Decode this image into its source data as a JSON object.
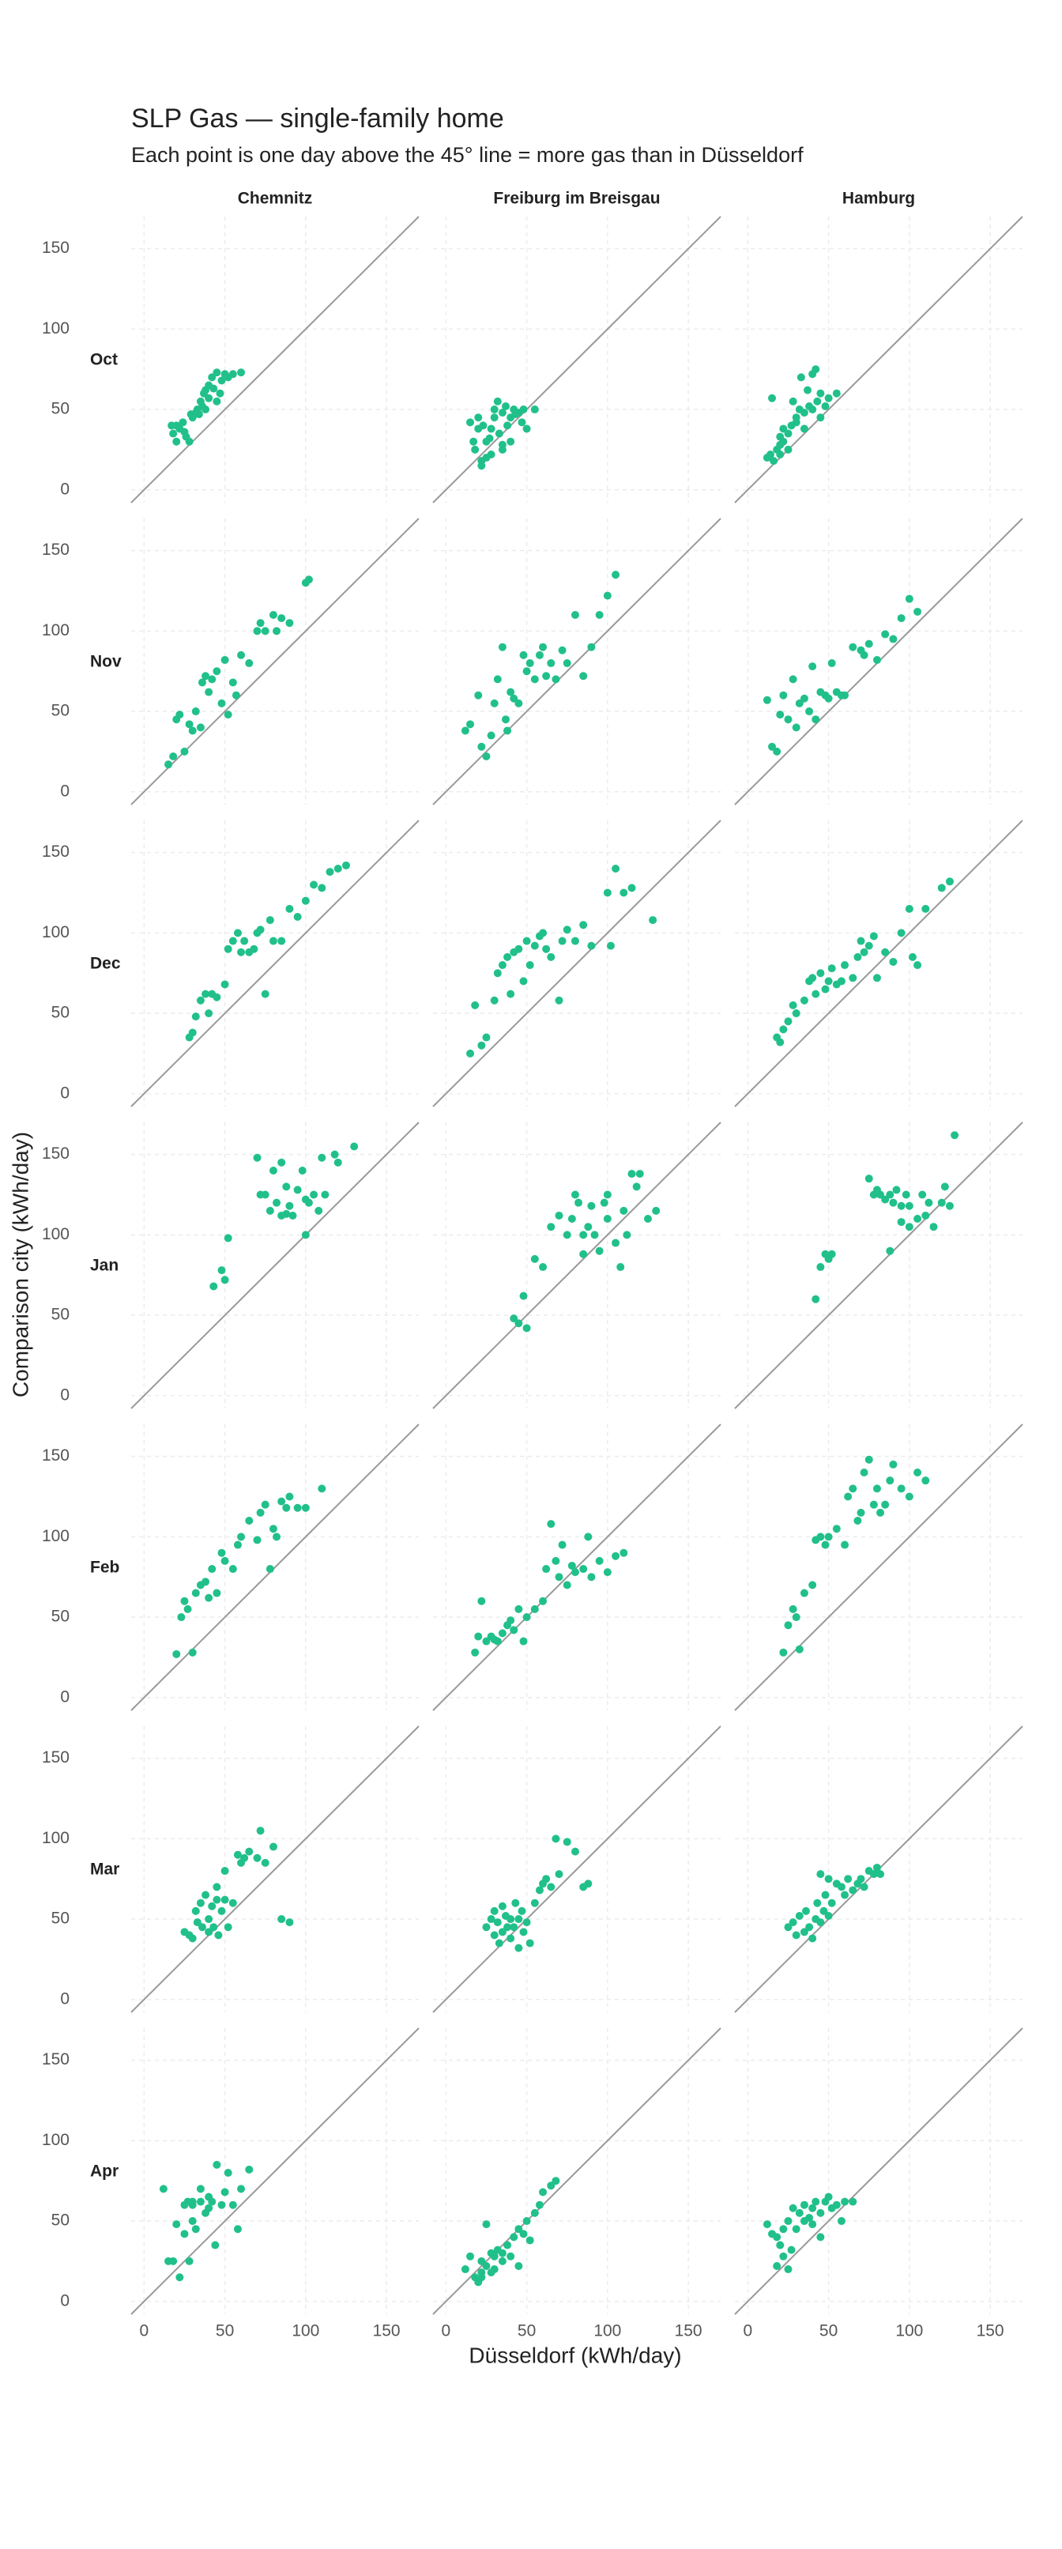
{
  "chart_data": {
    "type": "scatter",
    "title": "SLP Gas — single-family home",
    "subtitle": "Each point is one day above the 45° line = more gas than in Düsseldorf",
    "x_label": "Düsseldorf (kWh/day)",
    "y_label": "Comparison city (kWh/day)",
    "columns": [
      "Chemnitz",
      "Freiburg im Breisgau",
      "Hamburg"
    ],
    "rows": [
      "Oct",
      "Nov",
      "Dec",
      "Jan",
      "Feb",
      "Mar",
      "Apr"
    ],
    "xlim": [
      -8,
      170
    ],
    "ylim": [
      -8,
      170
    ],
    "xticks": [
      0,
      50,
      100,
      150
    ],
    "yticks": [
      0,
      50,
      100,
      150
    ],
    "grid": true,
    "color": "#21c08b",
    "panels": [
      {
        "x": [
          17,
          18,
          20,
          22,
          24,
          26,
          28,
          30,
          32,
          33,
          34,
          35,
          36,
          37,
          38,
          40,
          40,
          42,
          43,
          45,
          45,
          47,
          48,
          50,
          52,
          55,
          60,
          20,
          25,
          29,
          38
        ],
        "y": [
          40,
          35,
          30,
          38,
          42,
          33,
          30,
          45,
          48,
          50,
          47,
          55,
          52,
          60,
          50,
          57,
          65,
          70,
          63,
          73,
          55,
          60,
          68,
          72,
          70,
          72,
          73,
          40,
          36,
          47,
          62
        ]
      },
      {
        "x": [
          15,
          17,
          18,
          20,
          20,
          22,
          23,
          25,
          25,
          27,
          28,
          30,
          30,
          32,
          33,
          35,
          35,
          37,
          38,
          40,
          40,
          42,
          43,
          45,
          47,
          48,
          50,
          55,
          28,
          22,
          35
        ],
        "y": [
          42,
          30,
          25,
          45,
          38,
          15,
          40,
          20,
          30,
          32,
          38,
          45,
          50,
          55,
          35,
          48,
          28,
          52,
          40,
          45,
          30,
          50,
          47,
          48,
          42,
          50,
          38,
          50,
          22,
          18,
          25
        ]
      },
      {
        "x": [
          12,
          14,
          15,
          16,
          18,
          20,
          20,
          22,
          22,
          25,
          25,
          27,
          28,
          30,
          30,
          32,
          33,
          35,
          35,
          37,
          38,
          40,
          40,
          42,
          43,
          45,
          45,
          48,
          50,
          55,
          20
        ],
        "y": [
          20,
          22,
          57,
          18,
          25,
          33,
          28,
          30,
          38,
          35,
          25,
          40,
          55,
          42,
          45,
          50,
          70,
          48,
          38,
          62,
          52,
          72,
          50,
          75,
          55,
          45,
          60,
          52,
          57,
          60,
          22
        ]
      },
      {
        "x": [
          15,
          18,
          20,
          22,
          25,
          28,
          30,
          32,
          35,
          36,
          38,
          40,
          42,
          45,
          48,
          50,
          52,
          55,
          57,
          60,
          65,
          70,
          72,
          75,
          80,
          82,
          85,
          90,
          100,
          102
        ],
        "y": [
          17,
          22,
          45,
          48,
          25,
          42,
          38,
          50,
          40,
          68,
          72,
          62,
          70,
          75,
          55,
          82,
          48,
          68,
          60,
          85,
          80,
          100,
          105,
          100,
          110,
          100,
          108,
          105,
          130,
          132
        ]
      },
      {
        "x": [
          12,
          15,
          20,
          22,
          25,
          28,
          30,
          32,
          35,
          37,
          38,
          40,
          42,
          45,
          48,
          50,
          52,
          55,
          58,
          60,
          62,
          65,
          68,
          72,
          75,
          80,
          85,
          90,
          95,
          100,
          105
        ],
        "y": [
          38,
          42,
          60,
          28,
          22,
          35,
          55,
          70,
          90,
          45,
          38,
          62,
          58,
          55,
          85,
          75,
          80,
          70,
          85,
          90,
          72,
          80,
          70,
          88,
          80,
          110,
          72,
          90,
          110,
          122,
          135
        ]
      },
      {
        "x": [
          12,
          15,
          18,
          20,
          22,
          25,
          28,
          30,
          32,
          35,
          38,
          40,
          42,
          45,
          48,
          50,
          52,
          55,
          58,
          60,
          65,
          70,
          72,
          75,
          80,
          85,
          90,
          95,
          100,
          105
        ],
        "y": [
          57,
          28,
          25,
          48,
          60,
          45,
          70,
          40,
          55,
          58,
          50,
          78,
          45,
          62,
          60,
          58,
          80,
          62,
          60,
          60,
          90,
          88,
          85,
          92,
          82,
          98,
          95,
          108,
          120,
          112
        ]
      },
      {
        "x": [
          28,
          30,
          32,
          35,
          38,
          40,
          42,
          45,
          50,
          52,
          55,
          58,
          60,
          62,
          65,
          68,
          70,
          72,
          75,
          78,
          80,
          85,
          90,
          95,
          100,
          105,
          110,
          115,
          120,
          125
        ],
        "y": [
          35,
          38,
          48,
          58,
          62,
          50,
          62,
          60,
          68,
          90,
          95,
          100,
          88,
          95,
          88,
          90,
          100,
          102,
          62,
          108,
          95,
          95,
          115,
          110,
          120,
          130,
          128,
          138,
          140,
          142
        ]
      },
      {
        "x": [
          15,
          18,
          22,
          25,
          30,
          32,
          35,
          38,
          40,
          42,
          45,
          48,
          50,
          52,
          55,
          58,
          60,
          62,
          65,
          70,
          72,
          75,
          80,
          85,
          90,
          100,
          102,
          105,
          110,
          115,
          128
        ],
        "y": [
          25,
          55,
          30,
          35,
          58,
          75,
          80,
          85,
          62,
          88,
          90,
          70,
          95,
          80,
          92,
          98,
          100,
          90,
          85,
          58,
          95,
          102,
          95,
          105,
          92,
          125,
          92,
          140,
          125,
          128,
          108
        ]
      },
      {
        "x": [
          18,
          20,
          22,
          25,
          28,
          30,
          35,
          38,
          40,
          42,
          45,
          48,
          50,
          52,
          55,
          58,
          60,
          65,
          68,
          70,
          72,
          75,
          78,
          80,
          85,
          90,
          95,
          100,
          102,
          105,
          110,
          120,
          125
        ],
        "y": [
          35,
          32,
          40,
          45,
          55,
          50,
          58,
          70,
          72,
          62,
          75,
          65,
          70,
          78,
          68,
          70,
          80,
          72,
          85,
          95,
          88,
          92,
          98,
          72,
          88,
          82,
          100,
          115,
          85,
          80,
          115,
          128,
          132
        ]
      },
      {
        "x": [
          43,
          48,
          50,
          52,
          70,
          75,
          78,
          80,
          82,
          85,
          85,
          88,
          90,
          92,
          95,
          98,
          100,
          100,
          102,
          105,
          108,
          110,
          112,
          118,
          120,
          130,
          72,
          88
        ],
        "y": [
          68,
          78,
          72,
          98,
          148,
          125,
          115,
          140,
          120,
          145,
          112,
          130,
          118,
          112,
          128,
          140,
          100,
          122,
          120,
          125,
          115,
          148,
          125,
          150,
          145,
          155,
          125,
          113
        ]
      },
      {
        "x": [
          42,
          45,
          48,
          50,
          55,
          60,
          65,
          70,
          75,
          78,
          80,
          82,
          85,
          85,
          88,
          90,
          92,
          95,
          98,
          100,
          100,
          105,
          108,
          110,
          112,
          115,
          118,
          120,
          125,
          130
        ],
        "y": [
          48,
          45,
          62,
          42,
          85,
          80,
          105,
          112,
          100,
          110,
          125,
          120,
          88,
          100,
          105,
          118,
          100,
          90,
          120,
          110,
          125,
          95,
          80,
          115,
          100,
          138,
          130,
          138,
          110,
          115
        ]
      },
      {
        "x": [
          42,
          45,
          48,
          50,
          52,
          75,
          78,
          80,
          82,
          85,
          88,
          90,
          92,
          95,
          95,
          98,
          100,
          100,
          105,
          108,
          110,
          112,
          115,
          120,
          122,
          125,
          128,
          88
        ],
        "y": [
          60,
          80,
          88,
          85,
          88,
          135,
          125,
          128,
          125,
          122,
          125,
          120,
          128,
          118,
          108,
          125,
          118,
          105,
          110,
          125,
          112,
          120,
          105,
          120,
          130,
          118,
          162,
          90
        ]
      },
      {
        "x": [
          20,
          23,
          25,
          27,
          30,
          32,
          35,
          38,
          40,
          42,
          45,
          48,
          50,
          55,
          58,
          60,
          65,
          70,
          72,
          75,
          78,
          80,
          82,
          85,
          88,
          90,
          95,
          100,
          110
        ],
        "y": [
          27,
          50,
          60,
          55,
          28,
          65,
          70,
          72,
          62,
          80,
          65,
          90,
          85,
          80,
          95,
          100,
          110,
          98,
          115,
          120,
          80,
          105,
          100,
          122,
          118,
          125,
          118,
          118,
          130
        ]
      },
      {
        "x": [
          18,
          20,
          22,
          25,
          28,
          30,
          32,
          35,
          38,
          40,
          42,
          45,
          48,
          50,
          55,
          60,
          62,
          65,
          68,
          70,
          72,
          75,
          78,
          80,
          85,
          88,
          90,
          95,
          100,
          105,
          110
        ],
        "y": [
          28,
          38,
          60,
          35,
          38,
          36,
          35,
          40,
          45,
          48,
          42,
          55,
          35,
          50,
          55,
          60,
          80,
          108,
          85,
          75,
          95,
          70,
          82,
          78,
          80,
          100,
          75,
          85,
          78,
          88,
          90
        ]
      },
      {
        "x": [
          22,
          25,
          28,
          30,
          32,
          35,
          40,
          42,
          45,
          48,
          50,
          55,
          60,
          62,
          65,
          68,
          70,
          72,
          75,
          78,
          80,
          82,
          85,
          88,
          90,
          95,
          100,
          105,
          110
        ],
        "y": [
          28,
          45,
          55,
          50,
          30,
          65,
          70,
          98,
          100,
          95,
          100,
          105,
          95,
          125,
          130,
          110,
          115,
          140,
          148,
          120,
          130,
          115,
          120,
          135,
          145,
          130,
          125,
          140,
          135
        ]
      },
      {
        "x": [
          25,
          28,
          30,
          32,
          33,
          35,
          36,
          38,
          40,
          40,
          42,
          43,
          45,
          45,
          46,
          48,
          50,
          50,
          52,
          55,
          58,
          60,
          62,
          65,
          70,
          72,
          75,
          80,
          85,
          90
        ],
        "y": [
          42,
          40,
          38,
          55,
          48,
          60,
          45,
          65,
          42,
          50,
          58,
          45,
          70,
          62,
          40,
          55,
          62,
          80,
          45,
          60,
          90,
          85,
          88,
          92,
          88,
          105,
          85,
          95,
          50,
          48
        ]
      },
      {
        "x": [
          25,
          28,
          30,
          30,
          32,
          33,
          35,
          35,
          37,
          38,
          40,
          40,
          42,
          43,
          45,
          45,
          47,
          48,
          50,
          52,
          55,
          58,
          60,
          62,
          65,
          68,
          70,
          75,
          80,
          85,
          88
        ],
        "y": [
          45,
          50,
          40,
          55,
          48,
          35,
          58,
          42,
          52,
          45,
          50,
          38,
          45,
          60,
          32,
          50,
          55,
          42,
          48,
          35,
          60,
          68,
          72,
          75,
          70,
          100,
          78,
          98,
          92,
          70,
          72
        ]
      },
      {
        "x": [
          25,
          28,
          30,
          32,
          35,
          36,
          38,
          40,
          42,
          43,
          45,
          45,
          47,
          48,
          50,
          50,
          52,
          55,
          58,
          60,
          62,
          65,
          68,
          70,
          72,
          75,
          78,
          80,
          82
        ],
        "y": [
          45,
          48,
          40,
          52,
          42,
          55,
          45,
          38,
          50,
          60,
          48,
          78,
          55,
          65,
          52,
          75,
          60,
          72,
          70,
          65,
          75,
          68,
          72,
          75,
          70,
          80,
          78,
          82,
          78
        ]
      },
      {
        "x": [
          12,
          15,
          18,
          20,
          22,
          25,
          25,
          27,
          28,
          30,
          30,
          32,
          35,
          35,
          38,
          40,
          40,
          42,
          44,
          45,
          48,
          50,
          52,
          55,
          58,
          60,
          65,
          30
        ],
        "y": [
          70,
          25,
          25,
          48,
          15,
          60,
          42,
          62,
          25,
          60,
          50,
          45,
          62,
          70,
          55,
          58,
          65,
          62,
          35,
          85,
          60,
          68,
          80,
          60,
          45,
          70,
          82,
          62
        ]
      },
      {
        "x": [
          12,
          15,
          18,
          20,
          22,
          22,
          25,
          25,
          28,
          30,
          30,
          32,
          35,
          35,
          38,
          40,
          42,
          45,
          45,
          48,
          50,
          52,
          55,
          58,
          60,
          65,
          68,
          22,
          28
        ],
        "y": [
          20,
          28,
          15,
          12,
          25,
          18,
          48,
          22,
          30,
          28,
          20,
          32,
          25,
          30,
          35,
          28,
          40,
          45,
          22,
          42,
          50,
          38,
          55,
          60,
          68,
          72,
          75,
          15,
          18
        ]
      },
      {
        "x": [
          12,
          15,
          18,
          18,
          20,
          22,
          22,
          25,
          27,
          28,
          30,
          32,
          35,
          35,
          38,
          40,
          40,
          42,
          45,
          45,
          48,
          50,
          52,
          55,
          58,
          60,
          65,
          25
        ],
        "y": [
          48,
          42,
          40,
          22,
          35,
          45,
          28,
          50,
          32,
          58,
          45,
          55,
          50,
          60,
          52,
          58,
          48,
          62,
          55,
          40,
          62,
          65,
          58,
          60,
          50,
          62,
          62,
          20
        ]
      }
    ]
  }
}
